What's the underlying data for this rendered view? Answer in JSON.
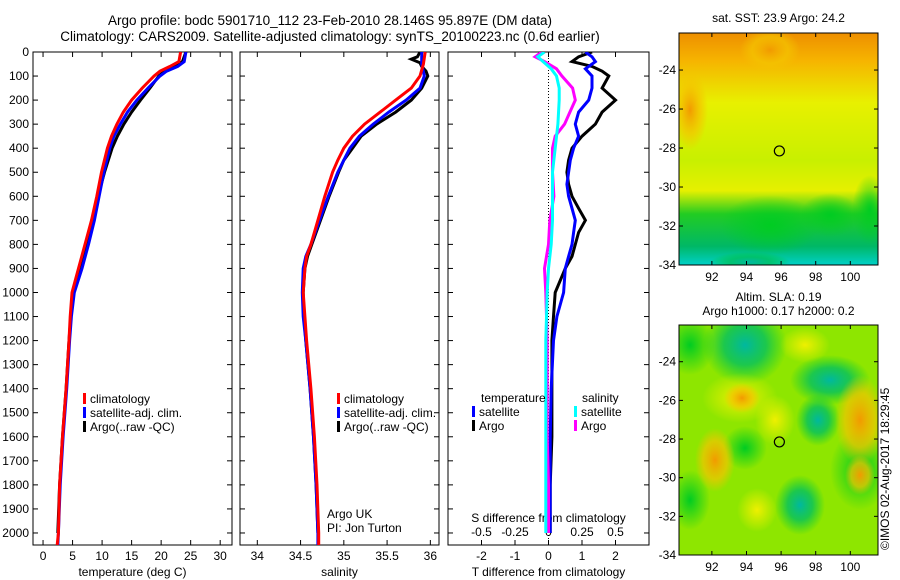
{
  "header": {
    "title_line1": "Argo profile: bodc 5901710_112 23-Feb-2010 28.146S 95.897E (DM data)",
    "title_line2": "Climatology: CARS2009. Satellite-adjusted climatology: synTS_20100223.nc (0.6d earlier)"
  },
  "colors": {
    "climatology": "#ff0000",
    "satellite": "#0000ff",
    "argo": "#000000",
    "salinity_satellite": "#00ffff",
    "salinity_argo": "#ff00ff"
  },
  "chart_data": [
    {
      "type": "line",
      "name": "temperature-profile",
      "xlabel": "temperature (deg C)",
      "ylabel": "",
      "xlim": [
        -1.7,
        32
      ],
      "ylim": [
        2050,
        0
      ],
      "xticks": [
        0,
        5,
        10,
        15,
        20,
        25,
        30
      ],
      "yticks": [
        0,
        100,
        200,
        300,
        400,
        500,
        600,
        700,
        800,
        900,
        1000,
        1100,
        1200,
        1300,
        1400,
        1500,
        1600,
        1700,
        1800,
        1900,
        2000
      ],
      "legend": [
        "climatology",
        "satellite-adj. clim.",
        "Argo(..raw -QC)"
      ],
      "legend_position": "center",
      "series": [
        {
          "name": "climatology",
          "depth": [
            0,
            40,
            60,
            80,
            100,
            150,
            200,
            250,
            300,
            350,
            400,
            500,
            600,
            700,
            800,
            900,
            1000,
            1100,
            1200,
            1400,
            1600,
            1800,
            2000,
            2050
          ],
          "values": [
            23.3,
            23.0,
            21.5,
            19.8,
            18.8,
            16.8,
            15.0,
            13.6,
            12.5,
            11.6,
            10.9,
            9.9,
            9.1,
            8.2,
            7.1,
            6.0,
            4.9,
            4.6,
            4.4,
            3.9,
            3.3,
            2.8,
            2.6,
            2.4
          ]
        },
        {
          "name": "satellite-adj. clim.",
          "depth": [
            0,
            40,
            60,
            80,
            100,
            150,
            200,
            250,
            300,
            350,
            400,
            500,
            600,
            700,
            800,
            900,
            1000,
            1100,
            1200,
            1400,
            1600,
            1800,
            2000,
            2050
          ],
          "values": [
            24.2,
            23.9,
            22.8,
            20.9,
            19.8,
            17.8,
            15.9,
            14.3,
            13.1,
            12.0,
            11.3,
            10.3,
            9.5,
            8.7,
            7.7,
            6.6,
            5.3,
            4.8,
            4.5,
            4.0,
            3.4,
            2.9,
            2.6,
            2.5
          ]
        },
        {
          "name": "Argo(..raw -QC)",
          "depth": [
            0,
            40,
            60,
            80,
            100,
            150,
            200,
            250,
            300,
            350,
            400,
            500,
            600,
            700,
            800,
            900,
            1000,
            1100,
            1200,
            1400,
            1600,
            1800,
            2000
          ],
          "values": [
            24.2,
            23.6,
            22.4,
            20.6,
            19.6,
            18.1,
            16.5,
            15.0,
            13.7,
            12.6,
            11.7,
            10.4,
            9.3,
            8.5,
            7.5,
            6.5,
            5.2,
            4.7,
            4.4,
            3.9,
            3.3,
            2.8,
            2.5
          ]
        }
      ]
    },
    {
      "type": "line",
      "name": "salinity-profile",
      "xlabel": "salinity",
      "xlim": [
        33.8,
        36.1
      ],
      "ylim": [
        2050,
        0
      ],
      "xticks": [
        34,
        34.5,
        35,
        35.5,
        36
      ],
      "xtick_labels": [
        "34",
        "34.5",
        "35",
        "35.5",
        "36"
      ],
      "legend": [
        "climatology",
        "satellite-adj. clim.",
        "Argo(..raw -QC)"
      ],
      "annotation": [
        "Argo UK",
        "PI: Jon Turton"
      ],
      "series": [
        {
          "name": "climatology",
          "depth": [
            0,
            50,
            100,
            150,
            200,
            250,
            300,
            350,
            400,
            450,
            500,
            600,
            700,
            800,
            850,
            900,
            1000,
            1100,
            1200,
            1400,
            1600,
            1800,
            2000,
            2050
          ],
          "values": [
            35.94,
            35.92,
            35.88,
            35.78,
            35.6,
            35.42,
            35.24,
            35.1,
            35.0,
            34.93,
            34.87,
            34.78,
            34.7,
            34.62,
            34.57,
            34.55,
            34.53,
            34.55,
            34.57,
            34.62,
            34.66,
            34.69,
            34.71,
            34.71
          ]
        },
        {
          "name": "satellite-adj. clim.",
          "depth": [
            0,
            50,
            100,
            150,
            200,
            250,
            300,
            350,
            400,
            450,
            500,
            600,
            700,
            800,
            850,
            900,
            1000,
            1100,
            1200,
            1400,
            1600,
            1800,
            2000,
            2050
          ],
          "values": [
            35.9,
            35.9,
            35.93,
            35.88,
            35.72,
            35.52,
            35.34,
            35.18,
            35.07,
            35.0,
            34.93,
            34.82,
            34.72,
            34.62,
            34.56,
            34.53,
            34.52,
            34.53,
            34.56,
            34.61,
            34.65,
            34.68,
            34.7,
            34.7
          ]
        },
        {
          "name": "Argo(..raw -QC)",
          "depth": [
            0,
            20,
            30,
            45,
            60,
            80,
            100,
            150,
            200,
            250,
            300,
            350,
            400,
            450,
            500,
            600,
            700,
            800,
            850,
            900,
            1000,
            1100,
            1200,
            1400,
            1600,
            1800,
            2000
          ],
          "values": [
            35.88,
            35.85,
            35.78,
            35.88,
            35.9,
            35.95,
            35.97,
            35.9,
            35.78,
            35.6,
            35.38,
            35.2,
            35.1,
            35.0,
            34.94,
            34.83,
            34.73,
            34.63,
            34.58,
            34.55,
            34.53,
            34.54,
            34.56,
            34.61,
            34.65,
            34.68,
            34.7
          ]
        }
      ]
    },
    {
      "type": "line",
      "name": "difference-profile",
      "xlabel": "T difference from climatology",
      "xlabel_top": "S difference from climatology",
      "xlim": [
        -3,
        3
      ],
      "ylim": [
        2050,
        0
      ],
      "xticks": [
        -2,
        -1,
        0,
        1,
        2
      ],
      "s_ticks": [
        -0.5,
        -0.25,
        0,
        0.25,
        0.5
      ],
      "s_tick_labels": [
        "-0.5",
        "-0.25",
        "0",
        "0.25",
        "0.5"
      ],
      "legend_temperature_heading": "temperature",
      "legend_salinity_heading": "salinity",
      "legend_temperature": [
        "satellite",
        "Argo"
      ],
      "legend_salinity": [
        "satellite",
        "Argo"
      ],
      "series": [
        {
          "name": "temperature satellite",
          "group": "temperature",
          "depth": [
            0,
            20,
            40,
            70,
            100,
            150,
            200,
            250,
            300,
            350,
            400,
            450,
            500,
            550,
            600,
            650,
            700,
            750,
            800,
            850,
            900,
            1000,
            1100,
            1200,
            1400,
            1600,
            1800,
            2000
          ],
          "values": [
            1.1,
            1.3,
            1.4,
            1.1,
            1.3,
            1.3,
            1.2,
            0.9,
            0.8,
            0.9,
            0.75,
            0.65,
            0.6,
            0.55,
            0.6,
            0.7,
            0.8,
            0.75,
            0.7,
            0.6,
            0.5,
            0.45,
            0.25,
            0.15,
            0.08,
            0.05,
            0.05,
            0.05
          ]
        },
        {
          "name": "temperature Argo",
          "group": "temperature",
          "depth": [
            0,
            20,
            40,
            60,
            80,
            100,
            150,
            200,
            250,
            300,
            350,
            400,
            450,
            500,
            550,
            600,
            650,
            700,
            750,
            800,
            850,
            900,
            1000,
            1100,
            1200,
            1400,
            1600,
            1800,
            2000
          ],
          "values": [
            1.3,
            0.9,
            0.7,
            1.3,
            1.6,
            1.8,
            1.6,
            2.0,
            1.6,
            1.4,
            1.0,
            0.7,
            0.6,
            0.55,
            0.6,
            0.7,
            0.9,
            1.1,
            0.9,
            0.8,
            0.7,
            0.5,
            0.2,
            0.15,
            0.1,
            0.1,
            0.1,
            0.05,
            0.05
          ]
        },
        {
          "name": "salinity satellite",
          "group": "salinity",
          "s_scale": true,
          "depth": [
            0,
            20,
            40,
            70,
            100,
            150,
            200,
            300,
            400,
            500,
            600,
            700,
            800,
            900,
            1000,
            1200,
            1400,
            1600,
            1800,
            2000
          ],
          "values": [
            -0.03,
            -0.08,
            -0.04,
            0.02,
            0.06,
            0.08,
            0.08,
            0.07,
            0.05,
            0.03,
            0.03,
            0.03,
            0.02,
            0.0,
            -0.01,
            -0.02,
            -0.02,
            -0.02,
            -0.02,
            -0.02
          ]
        },
        {
          "name": "salinity Argo",
          "group": "salinity",
          "s_scale": true,
          "depth": [
            0,
            20,
            40,
            70,
            100,
            150,
            200,
            250,
            300,
            350,
            400,
            500,
            600,
            700,
            800,
            900,
            1000,
            1200,
            1400,
            1600,
            1800,
            2000
          ],
          "values": [
            -0.05,
            -0.1,
            -0.03,
            0.06,
            0.1,
            0.18,
            0.2,
            0.16,
            0.12,
            0.05,
            0.03,
            0.03,
            0.04,
            0.01,
            0.0,
            -0.03,
            -0.02,
            -0.01,
            -0.01,
            -0.01,
            0.0,
            0.0
          ]
        }
      ]
    },
    {
      "type": "heatmap",
      "name": "sst-map",
      "title": "sat. SST: 23.9 Argo: 24.2",
      "xlim": [
        90.1,
        101.6
      ],
      "ylim": [
        -34,
        -22.1
      ],
      "xticks": [
        92,
        94,
        96,
        98,
        100
      ],
      "yticks": [
        -24,
        -26,
        -28,
        -30,
        -32,
        -34
      ],
      "marker": {
        "lon": 95.9,
        "lat": -28.15
      }
    },
    {
      "type": "heatmap",
      "name": "sla-map",
      "title_line1": "Altim. SLA: 0.19",
      "title_line2": "Argo h1000: 0.17 h2000: 0.2",
      "xlim": [
        90.1,
        101.6
      ],
      "ylim": [
        -34,
        -22.1
      ],
      "xticks": [
        92,
        94,
        96,
        98,
        100
      ],
      "yticks": [
        -24,
        -26,
        -28,
        -30,
        -32,
        -34
      ],
      "marker": {
        "lon": 95.9,
        "lat": -28.15
      }
    }
  ],
  "footer": {
    "stamp": "©IMOS 02-Aug-2017 18:29:45"
  }
}
